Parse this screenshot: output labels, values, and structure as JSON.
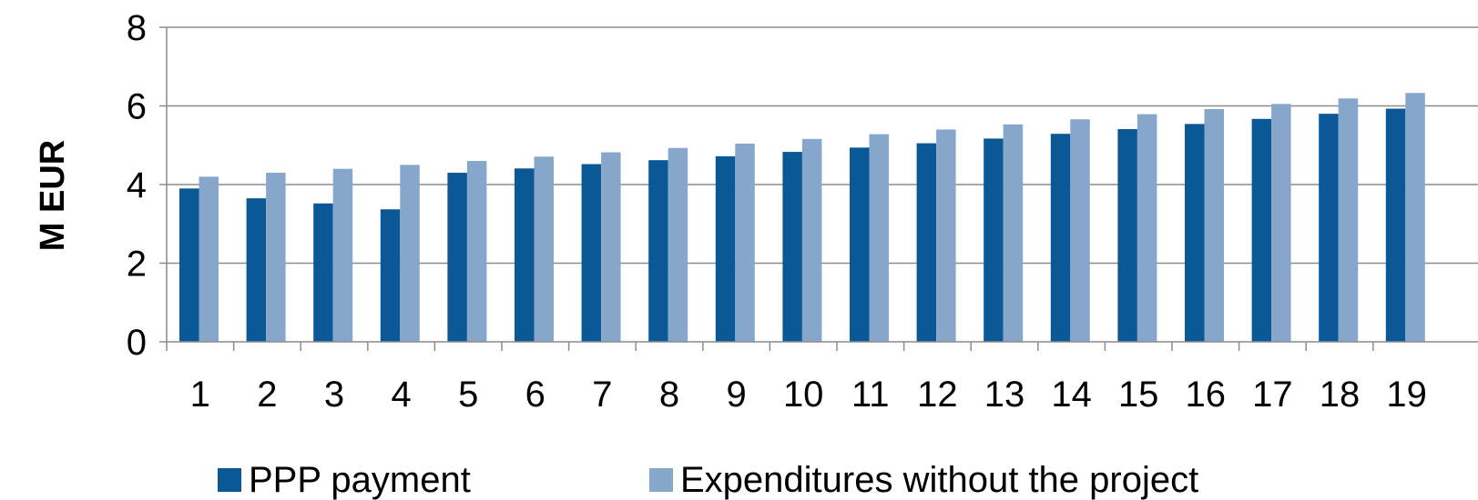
{
  "chart_data": {
    "type": "bar",
    "ylabel": "M EUR",
    "xlabel": "",
    "ylim": [
      0,
      8
    ],
    "yticks": [
      0,
      2,
      4,
      6,
      8
    ],
    "grid": true,
    "legend_position": "bottom",
    "categories": [
      "1",
      "2",
      "3",
      "4",
      "5",
      "6",
      "7",
      "8",
      "9",
      "10",
      "11",
      "12",
      "13",
      "14",
      "15",
      "16",
      "17",
      "18",
      "19"
    ],
    "series": [
      {
        "name": "PPP payment",
        "color": "#0b5896",
        "values": [
          3.9,
          3.65,
          3.52,
          3.37,
          4.3,
          4.41,
          4.52,
          4.62,
          4.72,
          4.83,
          4.94,
          5.05,
          5.17,
          5.29,
          5.41,
          5.54,
          5.67,
          5.8,
          5.93
        ]
      },
      {
        "name": "Expenditures without the project",
        "color": "#86a6cc",
        "values": [
          4.2,
          4.3,
          4.4,
          4.5,
          4.6,
          4.71,
          4.82,
          4.93,
          5.04,
          5.16,
          5.28,
          5.4,
          5.53,
          5.66,
          5.79,
          5.92,
          6.05,
          6.19,
          6.33
        ]
      }
    ]
  }
}
